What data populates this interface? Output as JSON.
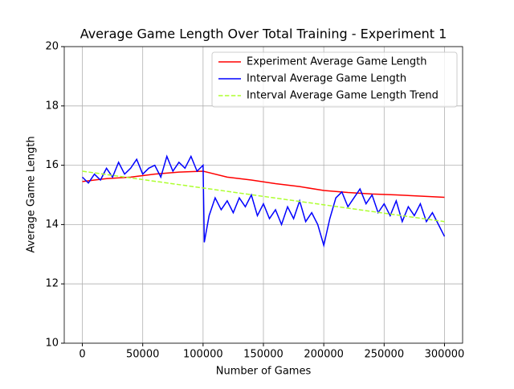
{
  "chart_data": {
    "type": "line",
    "title": "Average Game Length Over Total Training - Experiment 1",
    "xlabel": "Number of Games",
    "ylabel": "Average Game Length",
    "xlim": [
      -15000,
      315000
    ],
    "ylim": [
      10,
      20
    ],
    "xticks": [
      0,
      50000,
      100000,
      150000,
      200000,
      250000,
      300000
    ],
    "yticks": [
      10,
      12,
      14,
      16,
      18,
      20
    ],
    "grid": true,
    "legend": "upper right",
    "series": [
      {
        "name": "Experiment Average Game Length",
        "color": "#ff0000",
        "linestyle": "solid",
        "x": [
          0,
          20000,
          40000,
          60000,
          80000,
          100000,
          120000,
          140000,
          160000,
          180000,
          200000,
          220000,
          240000,
          260000,
          280000,
          300000
        ],
        "values": [
          15.45,
          15.55,
          15.6,
          15.7,
          15.77,
          15.8,
          15.6,
          15.5,
          15.38,
          15.28,
          15.15,
          15.08,
          15.03,
          15.0,
          14.96,
          14.92
        ]
      },
      {
        "name": "Interval Average Game Length",
        "color": "#0000ff",
        "linestyle": "solid",
        "x": [
          0,
          5000,
          10000,
          15000,
          20000,
          25000,
          30000,
          35000,
          40000,
          45000,
          50000,
          55000,
          60000,
          65000,
          70000,
          75000,
          80000,
          85000,
          90000,
          95000,
          100000,
          101000,
          105000,
          110000,
          115000,
          120000,
          125000,
          130000,
          135000,
          140000,
          145000,
          150000,
          155000,
          160000,
          165000,
          170000,
          175000,
          180000,
          185000,
          190000,
          195000,
          200000,
          205000,
          210000,
          215000,
          220000,
          225000,
          230000,
          235000,
          240000,
          245000,
          250000,
          255000,
          260000,
          265000,
          270000,
          275000,
          280000,
          285000,
          290000,
          295000,
          300000
        ],
        "values": [
          15.6,
          15.4,
          15.7,
          15.5,
          15.9,
          15.6,
          16.1,
          15.7,
          15.9,
          16.2,
          15.7,
          15.9,
          16.0,
          15.6,
          16.3,
          15.8,
          16.1,
          15.9,
          16.3,
          15.8,
          16.0,
          13.4,
          14.3,
          14.9,
          14.5,
          14.8,
          14.4,
          14.9,
          14.6,
          15.0,
          14.3,
          14.7,
          14.2,
          14.5,
          14.0,
          14.6,
          14.2,
          14.8,
          14.1,
          14.4,
          14.0,
          13.3,
          14.2,
          14.9,
          15.1,
          14.6,
          14.9,
          15.2,
          14.7,
          15.0,
          14.4,
          14.7,
          14.3,
          14.8,
          14.1,
          14.6,
          14.3,
          14.7,
          14.1,
          14.4,
          14.0,
          13.6
        ]
      },
      {
        "name": "Interval Average Game Length Trend",
        "color": "#adff2f",
        "linestyle": "dashed",
        "x": [
          0,
          300000
        ],
        "values": [
          15.8,
          14.1
        ]
      }
    ]
  }
}
